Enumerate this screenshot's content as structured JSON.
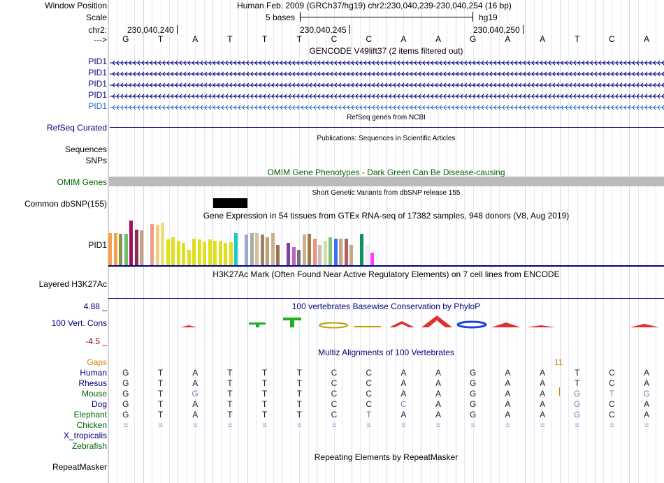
{
  "ruler": {
    "window_label": "Window Position",
    "window_text": "Human Feb. 2009 (GRCh37/hg19)   chr2:230,040,239-230,040,254 (16 bp)",
    "scale_label": "Scale",
    "scale_text": "5 bases",
    "assembly": "hg19",
    "chr_label": "chr2:",
    "positions": [
      "230,040,240",
      "230,040,245",
      "230,040,250"
    ],
    "strand_label": "--->",
    "bases": [
      "G",
      "T",
      "A",
      "T",
      "T",
      "T",
      "C",
      "C",
      "A",
      "A",
      "G",
      "A",
      "A",
      "T",
      "C",
      "A"
    ]
  },
  "gencode": {
    "title": "GENCODE V49lift37 (2 items filtered out)",
    "transcripts": [
      "PID1",
      "PID1",
      "PID1",
      "PID1",
      "PID1"
    ]
  },
  "refseq": {
    "title": "RefSeq genes from NCBI",
    "label": "RefSeq Curated"
  },
  "publications": {
    "title": "Publications: Sequences in Scientific Articles",
    "seq_label": "Sequences",
    "snp_label": "SNPs"
  },
  "omim": {
    "title": "OMIM Gene Phenotypes - Dark Green Can Be Disease-causing",
    "label": "OMIM Genes"
  },
  "dbsnp": {
    "title": "Short Genetic Variants from dbSNP release 155",
    "label": "Common dbSNP(155)"
  },
  "gtex": {
    "title": "Gene Expression in 54 tissues from GTEx RNA-seq of 17382 samples, 948 donors (V8, Aug 2019)",
    "label": "PID1"
  },
  "h3k27ac": {
    "title": "H3K27Ac Mark (Often Found Near Active Regulatory Elements) on 7 cell lines from ENCODE",
    "label": "Layered H3K27Ac"
  },
  "phylop": {
    "title": "100 vertebrates Basewise Conservation by PhyloP",
    "label": "100 Vert. Cons",
    "max_label": "4.88 _",
    "min_label": "-4.5 _"
  },
  "multiz": {
    "title": "Multiz Alignments of 100 Vertebrates",
    "gaps_label": "Gaps",
    "gap_count": "11",
    "species": [
      {
        "name": "Human",
        "seq": [
          "G",
          "T",
          "A",
          "T",
          "T",
          "T",
          "C",
          "C",
          "A",
          "A",
          "G",
          "A",
          "A",
          "T",
          "C",
          "A"
        ]
      },
      {
        "name": "Rhesus",
        "seq": [
          "G",
          "T",
          "A",
          "T",
          "T",
          "T",
          "C",
          "C",
          "A",
          "A",
          "G",
          "A",
          "A",
          "T",
          "C",
          "A"
        ]
      },
      {
        "name": "Mouse",
        "seq": [
          "G",
          "T",
          "G",
          "T",
          "T",
          "T",
          "C",
          "C",
          "A",
          "A",
          "G",
          "A",
          "A",
          "G",
          "T",
          "G"
        ]
      },
      {
        "name": "Dog",
        "seq": [
          "G",
          "T",
          "A",
          "T",
          "T",
          "T",
          "C",
          "C",
          "C",
          "A",
          "G",
          "A",
          "A",
          "G",
          "C",
          "A"
        ]
      },
      {
        "name": "Elephant",
        "seq": [
          "G",
          "T",
          "A",
          "T",
          "T",
          "T",
          "C",
          "T",
          "A",
          "A",
          "G",
          "A",
          "A",
          "G",
          "C",
          "A"
        ]
      },
      {
        "name": "Chicken",
        "seq": [
          "=",
          "=",
          "=",
          "=",
          "=",
          "=",
          "=",
          "=",
          "=",
          "=",
          "=",
          "=",
          "=",
          "=",
          "=",
          "="
        ]
      },
      {
        "name": "X_tropicalis",
        "seq": []
      },
      {
        "name": "Zebrafish",
        "seq": []
      }
    ]
  },
  "repeatmasker": {
    "title": "Repeating Elements by RepeatMasker",
    "label": "RepeatMasker"
  },
  "colors": {
    "link_blue": "#000080",
    "omim_green": "#006400",
    "gaps_orange": "#cc8800",
    "pid1_blue": "#1c6fbf",
    "gray_bar": "#bbbbbb"
  }
}
